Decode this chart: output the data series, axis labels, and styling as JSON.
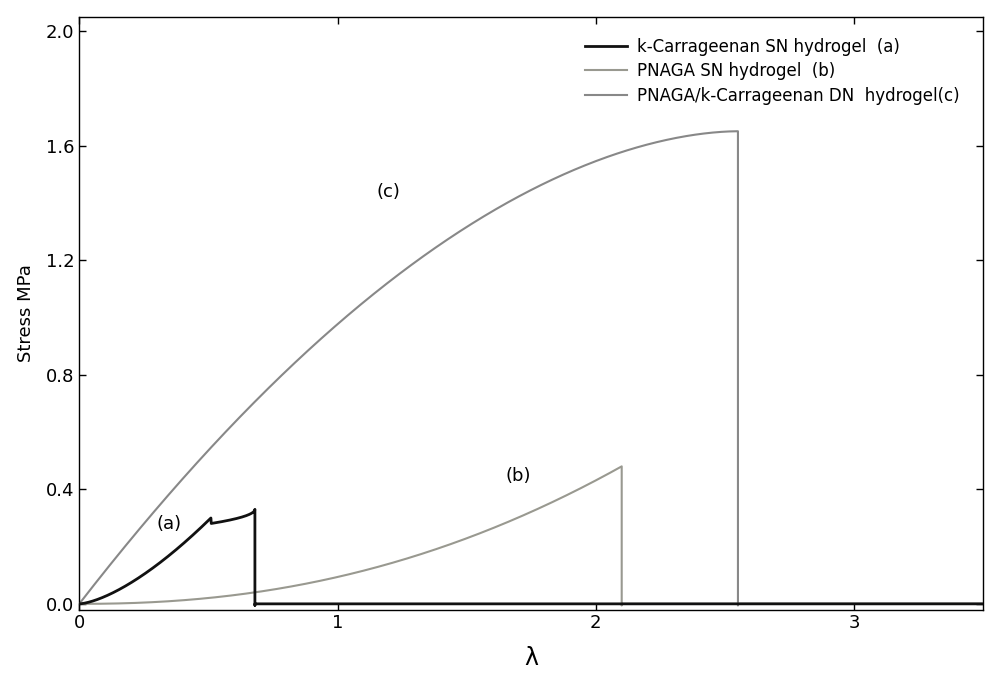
{
  "title": "",
  "xlabel": "λ",
  "ylabel": "Stress MPa",
  "xlim": [
    0,
    3.5
  ],
  "ylim": [
    -0.02,
    2.05
  ],
  "xticks": [
    0,
    1,
    2,
    3
  ],
  "yticks": [
    0.0,
    0.4,
    0.8,
    1.2,
    1.6,
    2.0
  ],
  "legend_a": "k-Carrageenan SN hydrogel",
  "legend_b": "PNAGA SN hydrogel",
  "legend_c": "PNAGA/k-Carrageenan DN  hydrogel",
  "label_a": "(a)",
  "label_b": "(b)",
  "label_c": "(c)",
  "color_a": "#111111",
  "color_b": "#999990",
  "color_c": "#888888",
  "background": "#ffffff",
  "figsize": [
    10.0,
    6.87
  ],
  "dpi": 100
}
